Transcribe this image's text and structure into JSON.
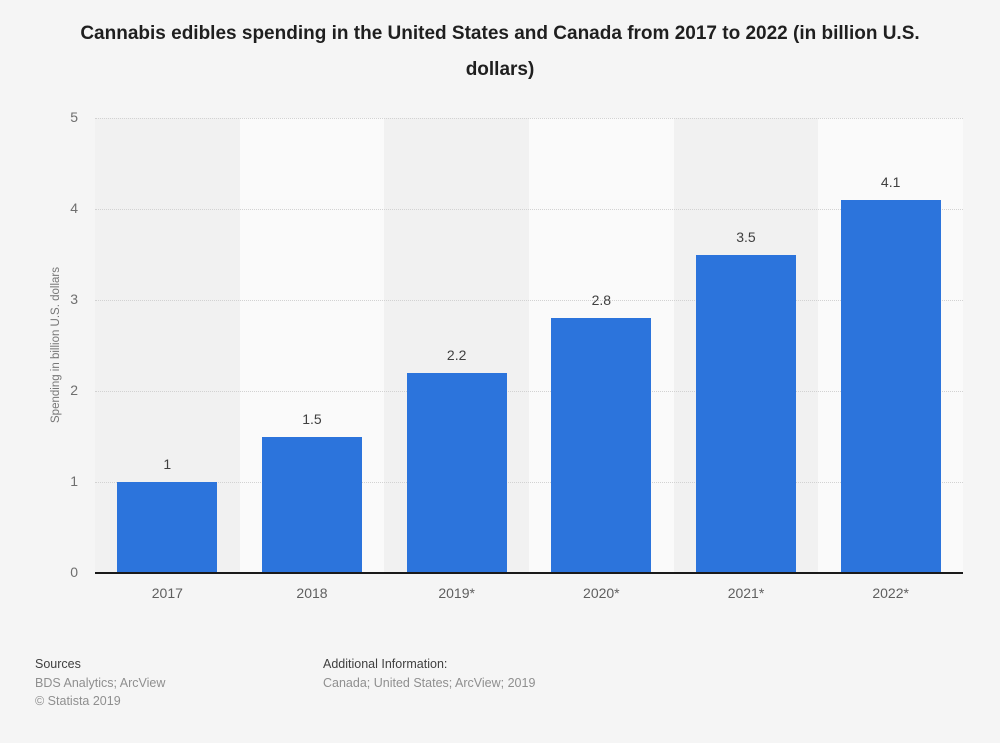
{
  "chart_data": {
    "type": "bar",
    "title": "Cannabis edibles spending in the United States and Canada from 2017 to 2022 (in billion U.S. dollars)",
    "categories": [
      "2017",
      "2018",
      "2019*",
      "2020*",
      "2021*",
      "2022*"
    ],
    "values": [
      1,
      1.5,
      2.2,
      2.8,
      3.5,
      4.1
    ],
    "value_labels": [
      "1",
      "1.5",
      "2.2",
      "2.8",
      "3.5",
      "4.1"
    ],
    "xlabel": "",
    "ylabel": "Spending in billion U.S. dollars",
    "ylim": [
      0,
      5
    ],
    "yticks": [
      0,
      1,
      2,
      3,
      4,
      5
    ],
    "grid": "horizontal-dotted",
    "legend": "none",
    "bar_color": "#2C74DC"
  },
  "footer": {
    "sources_label": "Sources",
    "sources_text": "BDS Analytics; ArcView",
    "copyright": "© Statista 2019",
    "additional_label": "Additional Information:",
    "additional_text": "Canada; United States; ArcView; 2019"
  },
  "colors": {
    "background": "#f5f5f5",
    "band_dark": "#f1f1f1",
    "band_light": "#fafafa",
    "bar": "#2C74DC",
    "gridline": "#d2d2d2",
    "axis_line": "#1a1a1a"
  }
}
